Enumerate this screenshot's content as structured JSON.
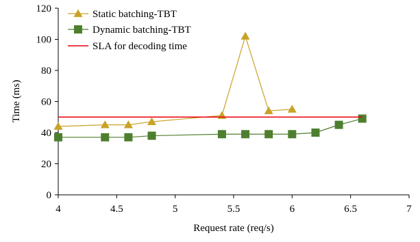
{
  "chart_data": {
    "type": "line",
    "xlabel": "Request rate (req/s)",
    "ylabel": "Time (ms)",
    "xlim": [
      4,
      7
    ],
    "ylim": [
      0,
      120
    ],
    "xticks": [
      "4",
      "4.5",
      "5",
      "5.5",
      "6",
      "6.5",
      "7"
    ],
    "yticks": [
      "0",
      "20",
      "40",
      "60",
      "80",
      "100",
      "120"
    ],
    "grid": false,
    "legend_position": "top-left",
    "series": [
      {
        "name": "Static batching-TBT",
        "color": "#C9A227",
        "marker": "triangle",
        "x": [
          4,
          4.4,
          4.6,
          4.8,
          5.4,
          5.6,
          5.8,
          6.0
        ],
        "y": [
          44,
          45,
          45,
          47,
          51,
          102,
          54,
          55
        ]
      },
      {
        "name": "Dynamic batching-TBT",
        "color": "#4E7F2E",
        "marker": "square",
        "x": [
          4,
          4.4,
          4.6,
          4.8,
          5.4,
          5.6,
          5.8,
          6.0,
          6.2,
          6.4,
          6.6
        ],
        "y": [
          37,
          37,
          37,
          38,
          39,
          39,
          39,
          39,
          40,
          45,
          49
        ]
      },
      {
        "name": "SLA for decoding time",
        "color": "#E8000B",
        "marker": "none",
        "x": [
          4,
          6.6
        ],
        "y": [
          50,
          50
        ]
      }
    ]
  }
}
